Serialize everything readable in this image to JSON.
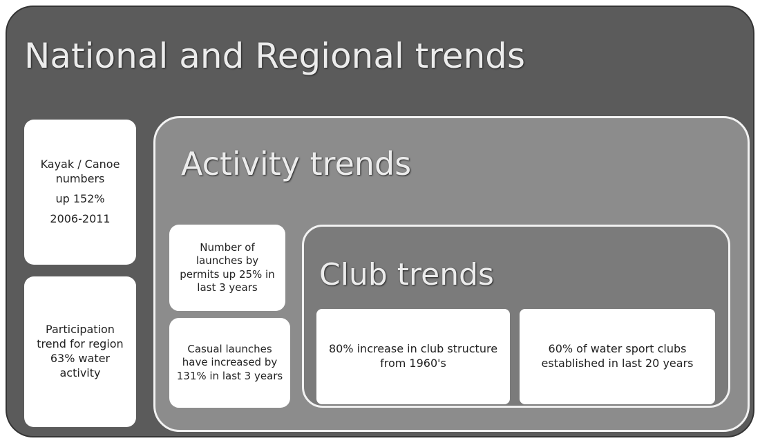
{
  "title": "National and Regional trends",
  "side_boxes": [
    {
      "paragraphs": [
        "Kayak / Canoe numbers",
        "up 152%",
        "2006-2011"
      ]
    },
    {
      "paragraphs": [
        "Participation trend for region 63% water activity"
      ]
    }
  ],
  "activity": {
    "title": "Activity trends",
    "boxes": [
      {
        "paragraphs": [
          "Number of launches by permits up 25% in last 3 years"
        ]
      },
      {
        "paragraphs": [
          "Casual launches have increased by 131% in last 3 years"
        ]
      }
    ],
    "club": {
      "title": "Club trends",
      "boxes": [
        {
          "paragraphs": [
            "80% increase in club structure from 1960's"
          ]
        },
        {
          "paragraphs": [
            "60% of water sport clubs established in last 20 years"
          ]
        }
      ]
    }
  }
}
